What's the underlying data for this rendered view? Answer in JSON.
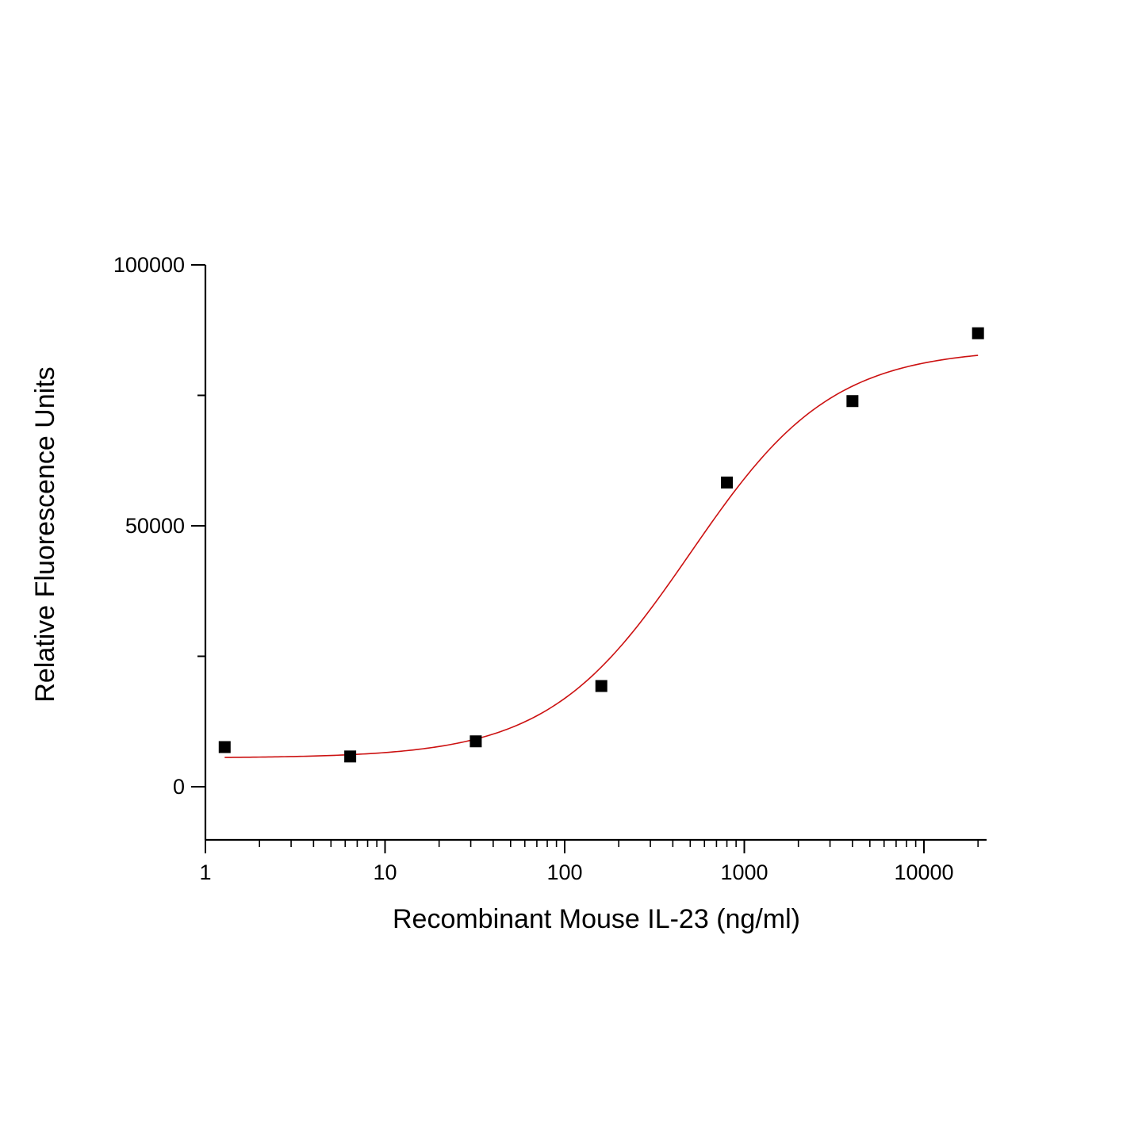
{
  "chart_data": {
    "type": "scatter",
    "xlabel": "Recombinant Mouse IL-23 (ng/ml)",
    "ylabel": "Relative Fluorescence Units",
    "x_scale": "log",
    "xlim": [
      1,
      22000
    ],
    "ylim": [
      -10000,
      100000
    ],
    "x_ticks": [
      {
        "value": 1,
        "label": "1"
      },
      {
        "value": 10,
        "label": "10"
      },
      {
        "value": 100,
        "label": "100"
      },
      {
        "value": 1000,
        "label": "1000"
      },
      {
        "value": 10000,
        "label": "10000"
      }
    ],
    "y_ticks": [
      {
        "value": 0,
        "label": "0"
      },
      {
        "value": 50000,
        "label": "50000"
      },
      {
        "value": 100000,
        "label": "100000"
      }
    ],
    "y_minor_ticks": [
      25000,
      75000
    ],
    "grid": false,
    "series": [
      {
        "kind": "points",
        "marker": "square",
        "color": "#000000",
        "x": [
          1.28,
          6.4,
          32,
          160,
          800,
          4000,
          20000
        ],
        "y": [
          7600,
          5800,
          8700,
          19300,
          58300,
          73900,
          86900
        ]
      },
      {
        "kind": "fit",
        "color": "#cc1111",
        "x_range": [
          1.28,
          20000
        ],
        "bottom": 5500,
        "top": 84000,
        "ec50": 500,
        "hill": 1.1
      }
    ]
  }
}
